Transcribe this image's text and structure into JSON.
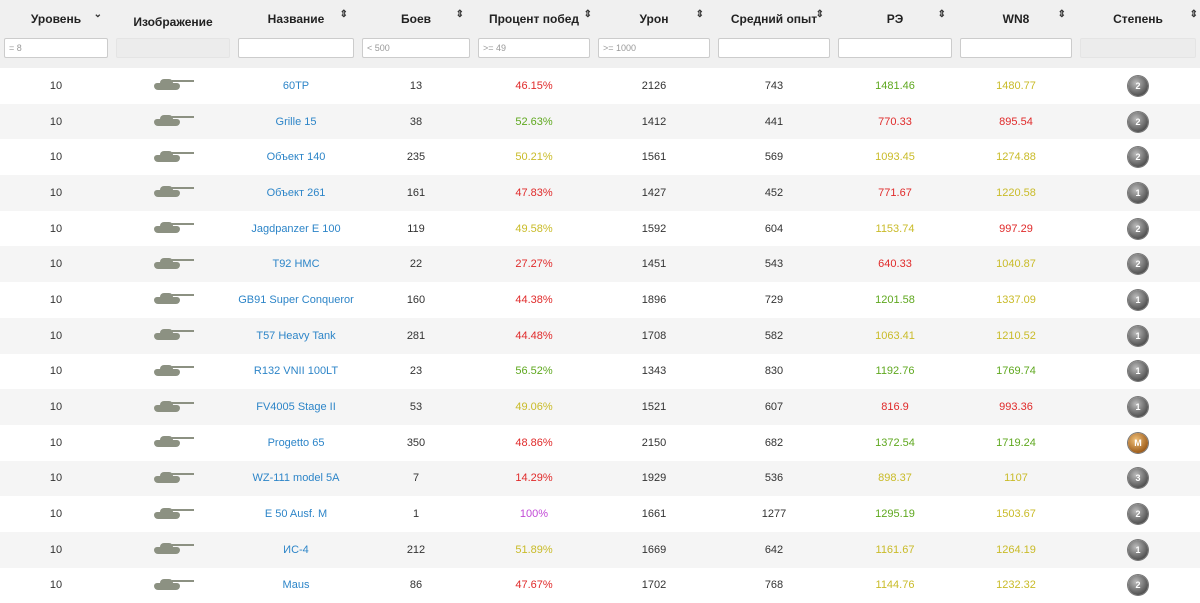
{
  "headers": [
    "Уровень",
    "Изображение",
    "Название",
    "Боев",
    "Процент побед",
    "Урон",
    "Средний опыт",
    "РЭ",
    "WN8",
    "Степень"
  ],
  "filters": {
    "level": "= 8",
    "name": "",
    "battles": "< 500",
    "winrate": ">= 49",
    "damage": ">= 1000",
    "xp": "",
    "re": "",
    "wn8": ""
  },
  "rows": [
    {
      "level": "10",
      "name": "60TP",
      "battles": "13",
      "winrate": "46.15%",
      "wr_c": "red",
      "damage": "2126",
      "xp": "743",
      "re": "1481.46",
      "re_c": "green",
      "wn8": "1480.77",
      "wn8_c": "yellow",
      "badge": "2"
    },
    {
      "level": "10",
      "name": "Grille 15",
      "battles": "38",
      "winrate": "52.63%",
      "wr_c": "green",
      "damage": "1412",
      "xp": "441",
      "re": "770.33",
      "re_c": "red",
      "wn8": "895.54",
      "wn8_c": "red",
      "badge": "2"
    },
    {
      "level": "10",
      "name": "Объект 140",
      "battles": "235",
      "winrate": "50.21%",
      "wr_c": "yellow",
      "damage": "1561",
      "xp": "569",
      "re": "1093.45",
      "re_c": "yellow",
      "wn8": "1274.88",
      "wn8_c": "yellow",
      "badge": "2"
    },
    {
      "level": "10",
      "name": "Объект 261",
      "battles": "161",
      "winrate": "47.83%",
      "wr_c": "red",
      "damage": "1427",
      "xp": "452",
      "re": "771.67",
      "re_c": "red",
      "wn8": "1220.58",
      "wn8_c": "yellow",
      "badge": "1"
    },
    {
      "level": "10",
      "name": "Jagdpanzer E 100",
      "battles": "119",
      "winrate": "49.58%",
      "wr_c": "yellow",
      "damage": "1592",
      "xp": "604",
      "re": "1153.74",
      "re_c": "yellow",
      "wn8": "997.29",
      "wn8_c": "red",
      "badge": "2"
    },
    {
      "level": "10",
      "name": "T92 HMC",
      "battles": "22",
      "winrate": "27.27%",
      "wr_c": "red",
      "damage": "1451",
      "xp": "543",
      "re": "640.33",
      "re_c": "red",
      "wn8": "1040.87",
      "wn8_c": "yellow",
      "badge": "2"
    },
    {
      "level": "10",
      "name": "GB91 Super Conqueror",
      "battles": "160",
      "winrate": "44.38%",
      "wr_c": "red",
      "damage": "1896",
      "xp": "729",
      "re": "1201.58",
      "re_c": "green",
      "wn8": "1337.09",
      "wn8_c": "yellow",
      "badge": "1"
    },
    {
      "level": "10",
      "name": "T57 Heavy Tank",
      "battles": "281",
      "winrate": "44.48%",
      "wr_c": "red",
      "damage": "1708",
      "xp": "582",
      "re": "1063.41",
      "re_c": "yellow",
      "wn8": "1210.52",
      "wn8_c": "yellow",
      "badge": "1"
    },
    {
      "level": "10",
      "name": "R132 VNII 100LT",
      "battles": "23",
      "winrate": "56.52%",
      "wr_c": "green",
      "damage": "1343",
      "xp": "830",
      "re": "1192.76",
      "re_c": "green",
      "wn8": "1769.74",
      "wn8_c": "green",
      "badge": "1"
    },
    {
      "level": "10",
      "name": "FV4005 Stage II",
      "battles": "53",
      "winrate": "49.06%",
      "wr_c": "yellow",
      "damage": "1521",
      "xp": "607",
      "re": "816.9",
      "re_c": "red",
      "wn8": "993.36",
      "wn8_c": "red",
      "badge": "1"
    },
    {
      "level": "10",
      "name": "Progetto 65",
      "battles": "350",
      "winrate": "48.86%",
      "wr_c": "red",
      "damage": "2150",
      "xp": "682",
      "re": "1372.54",
      "re_c": "green",
      "wn8": "1719.24",
      "wn8_c": "green",
      "badge": "M"
    },
    {
      "level": "10",
      "name": "WZ-111 model 5A",
      "battles": "7",
      "winrate": "14.29%",
      "wr_c": "red",
      "damage": "1929",
      "xp": "536",
      "re": "898.37",
      "re_c": "yellow",
      "wn8": "1107",
      "wn8_c": "yellow",
      "badge": "3"
    },
    {
      "level": "10",
      "name": "E 50 Ausf. M",
      "battles": "1",
      "winrate": "100%",
      "wr_c": "purple",
      "damage": "1661",
      "xp": "1277",
      "re": "1295.19",
      "re_c": "green",
      "wn8": "1503.67",
      "wn8_c": "yellow",
      "badge": "2"
    },
    {
      "level": "10",
      "name": "ИС-4",
      "battles": "212",
      "winrate": "51.89%",
      "wr_c": "yellow",
      "damage": "1669",
      "xp": "642",
      "re": "1161.67",
      "re_c": "yellow",
      "wn8": "1264.19",
      "wn8_c": "yellow",
      "badge": "1"
    },
    {
      "level": "10",
      "name": "Maus",
      "battles": "86",
      "winrate": "47.67%",
      "wr_c": "red",
      "damage": "1702",
      "xp": "768",
      "re": "1144.76",
      "re_c": "yellow",
      "wn8": "1232.32",
      "wn8_c": "yellow",
      "badge": "2"
    }
  ]
}
